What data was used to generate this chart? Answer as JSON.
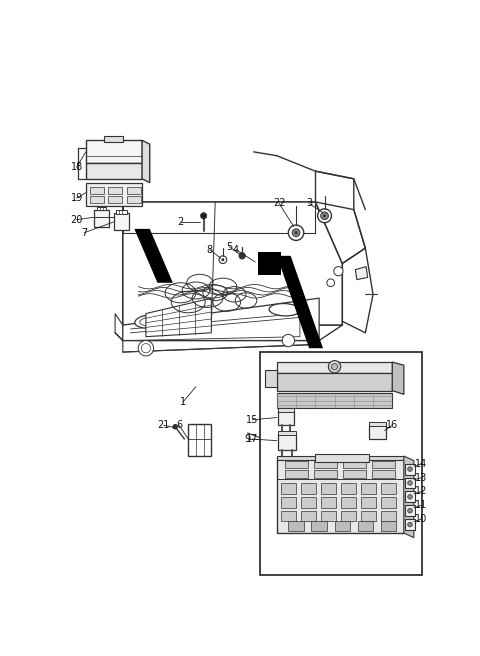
{
  "bg_color": "#ffffff",
  "line_color": "#333333",
  "fig_width": 4.8,
  "fig_height": 6.56,
  "dpi": 100
}
